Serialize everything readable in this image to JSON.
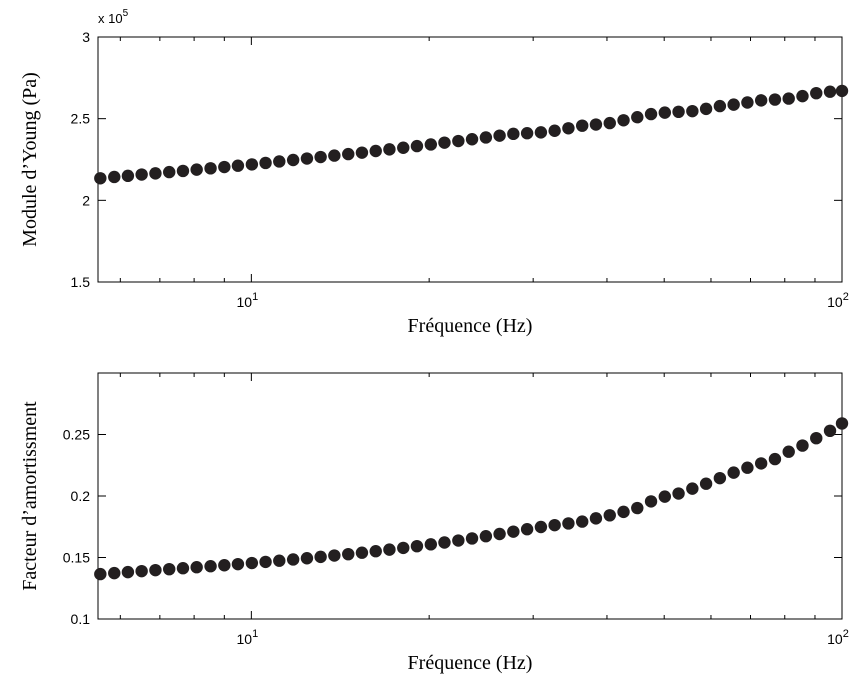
{
  "chart_data": [
    {
      "type": "scatter",
      "xscale": "log",
      "xlim": [
        5.5,
        100
      ],
      "ylim": [
        150000,
        300000
      ],
      "grid": false,
      "xlabel": "Fréquence (Hz)",
      "ylabel": "Module d’Young (Pa)",
      "y_multiplier": "x 10",
      "y_multiplier_exp": "5",
      "xticks": [
        {
          "value": 10,
          "base": "10",
          "exp": "1"
        },
        {
          "value": 100,
          "base": "10",
          "exp": "2"
        }
      ],
      "yticks": [
        {
          "value": 150000,
          "label": "1.5"
        },
        {
          "value": 200000,
          "label": "2"
        },
        {
          "value": 250000,
          "label": "2.5"
        },
        {
          "value": 300000,
          "label": "3"
        }
      ],
      "series": [
        {
          "marker_color": "#231f20",
          "x": [
            5.55,
            5.86,
            6.18,
            6.52,
            6.88,
            7.26,
            7.66,
            8.08,
            8.53,
            9.0,
            9.49,
            10.02,
            10.57,
            11.15,
            11.77,
            12.42,
            13.1,
            13.82,
            14.59,
            15.39,
            16.24,
            17.13,
            18.08,
            19.07,
            20.13,
            21.23,
            22.41,
            23.64,
            24.95,
            26.32,
            27.77,
            29.3,
            30.92,
            32.62,
            34.42,
            36.32,
            38.32,
            40.44,
            42.67,
            45.02,
            47.5,
            50.12,
            52.88,
            55.8,
            58.87,
            62.12,
            65.55,
            69.16,
            72.97,
            77.0,
            81.24,
            85.72,
            90.45,
            95.44,
            100.0
          ],
          "y": [
            213500,
            214300,
            215000,
            215800,
            216500,
            217300,
            218000,
            218800,
            219600,
            220400,
            221200,
            222000,
            222900,
            223800,
            224700,
            225600,
            226500,
            227400,
            228300,
            229200,
            230200,
            231200,
            232200,
            233200,
            234200,
            235300,
            236300,
            237400,
            238500,
            239600,
            240700,
            241100,
            241600,
            242600,
            244100,
            245700,
            246400,
            247300,
            249000,
            250900,
            252800,
            253700,
            254200,
            254600,
            256000,
            257700,
            258600,
            259900,
            261200,
            261700,
            262300,
            263800,
            265600,
            266500,
            267000
          ]
        }
      ]
    },
    {
      "type": "scatter",
      "xscale": "log",
      "xlim": [
        5.5,
        100
      ],
      "ylim": [
        0.1,
        0.3
      ],
      "grid": false,
      "xlabel": "Fréquence (Hz)",
      "ylabel": "Facteur d’amortissment",
      "xticks": [
        {
          "value": 10,
          "base": "10",
          "exp": "1"
        },
        {
          "value": 100,
          "base": "10",
          "exp": "2"
        }
      ],
      "yticks": [
        {
          "value": 0.1,
          "label": "0.1"
        },
        {
          "value": 0.15,
          "label": "0.15"
        },
        {
          "value": 0.2,
          "label": "0.2"
        },
        {
          "value": 0.25,
          "label": "0.25"
        }
      ],
      "series": [
        {
          "marker_color": "#231f20",
          "x": [
            5.55,
            5.86,
            6.18,
            6.52,
            6.88,
            7.26,
            7.66,
            8.08,
            8.53,
            9.0,
            9.49,
            10.02,
            10.57,
            11.15,
            11.77,
            12.42,
            13.1,
            13.82,
            14.59,
            15.39,
            16.24,
            17.13,
            18.08,
            19.07,
            20.13,
            21.23,
            22.41,
            23.64,
            24.95,
            26.32,
            27.77,
            29.3,
            30.92,
            32.62,
            34.42,
            36.32,
            38.32,
            40.44,
            42.67,
            45.02,
            47.5,
            50.12,
            52.88,
            55.8,
            58.87,
            62.12,
            65.55,
            69.16,
            72.97,
            77.0,
            81.24,
            85.72,
            90.45,
            95.44,
            100.0
          ],
          "y": [
            0.1365,
            0.1373,
            0.1381,
            0.1389,
            0.1397,
            0.1405,
            0.1413,
            0.1421,
            0.1429,
            0.1437,
            0.1446,
            0.1455,
            0.1464,
            0.1474,
            0.1484,
            0.1494,
            0.1505,
            0.1516,
            0.1527,
            0.1539,
            0.1551,
            0.1564,
            0.1578,
            0.1592,
            0.1607,
            0.1622,
            0.1638,
            0.1655,
            0.1673,
            0.1691,
            0.171,
            0.173,
            0.1748,
            0.1763,
            0.1777,
            0.1792,
            0.1818,
            0.1843,
            0.1871,
            0.1902,
            0.1956,
            0.1995,
            0.202,
            0.206,
            0.21,
            0.2145,
            0.219,
            0.223,
            0.2265,
            0.23,
            0.236,
            0.241,
            0.247,
            0.253,
            0.259
          ]
        }
      ]
    }
  ]
}
